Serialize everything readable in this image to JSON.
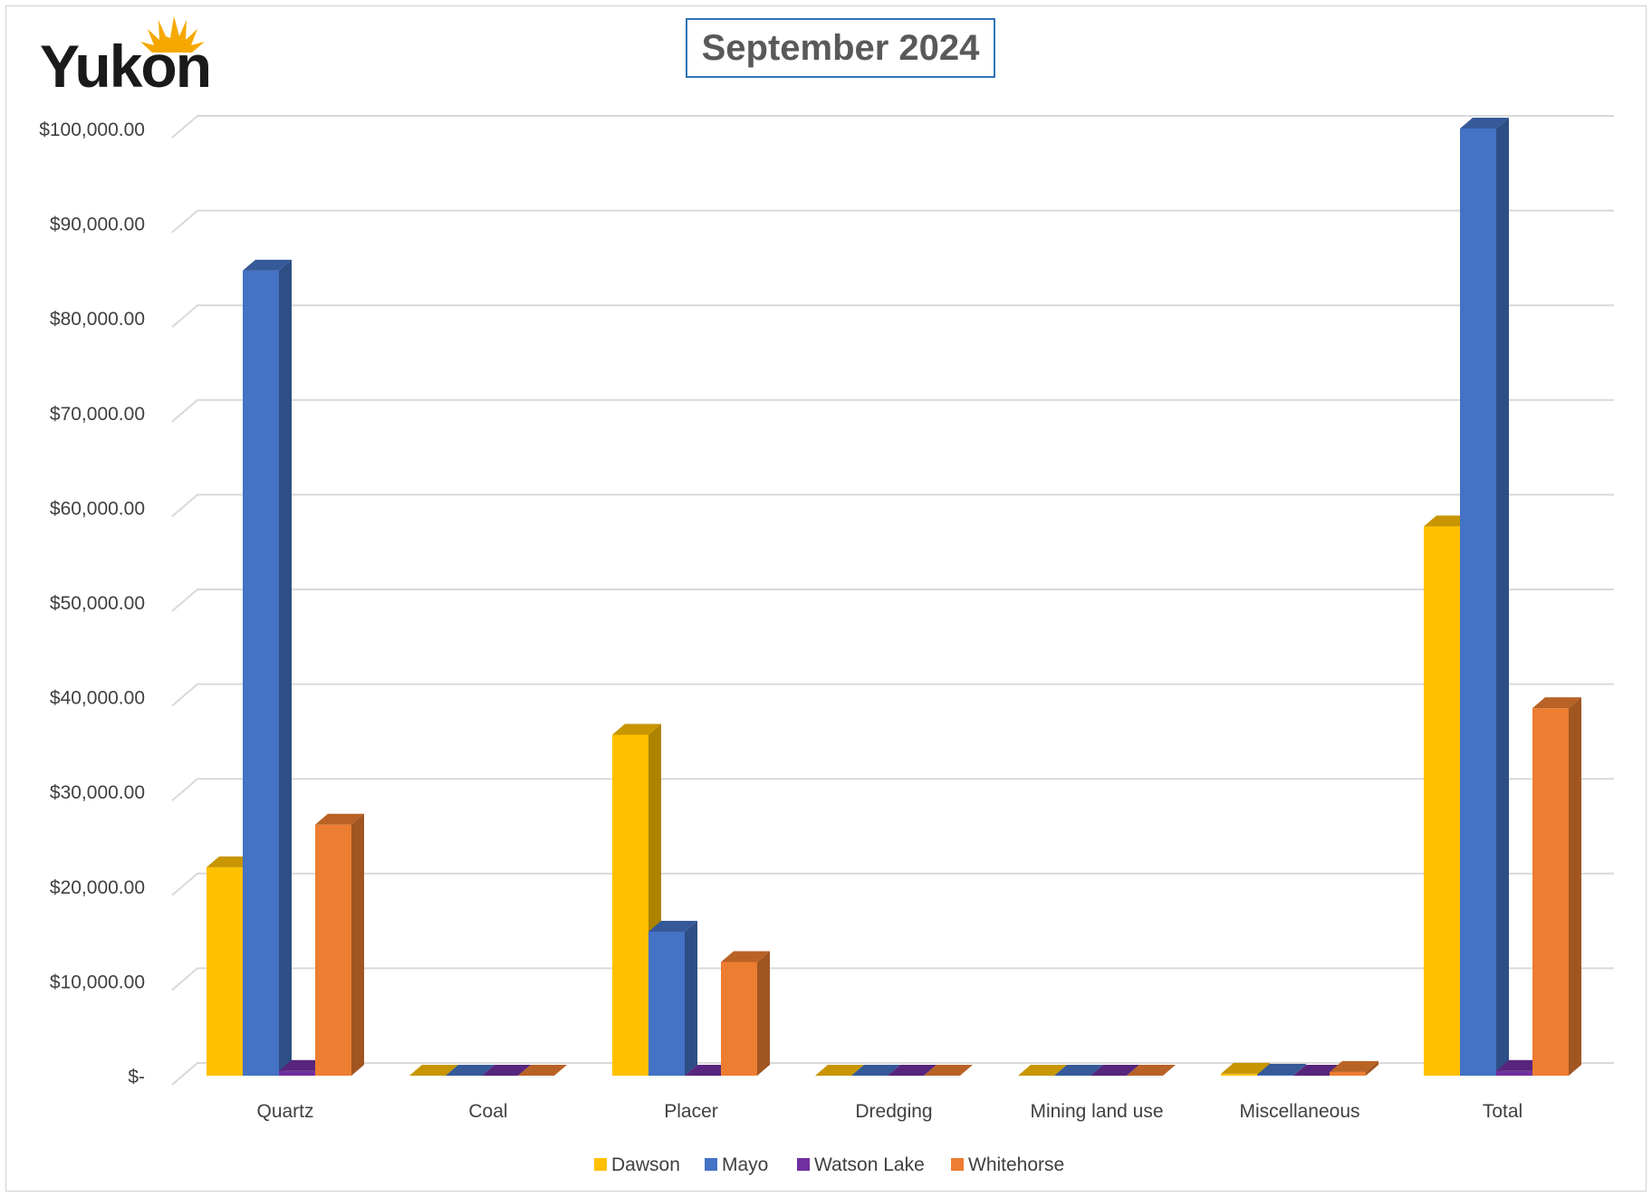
{
  "logo": {
    "text": "Yukon",
    "colors": {
      "text": "#1a1a1a",
      "sun": "#f6a800"
    }
  },
  "chart_data": {
    "type": "bar",
    "title": "September 2024",
    "categories": [
      "Quartz",
      "Coal",
      "Placer",
      "Dredging",
      "Mining land use",
      "Miscellaneous",
      "Total"
    ],
    "series": [
      {
        "name": "Dawson",
        "color": "#ffc000",
        "values": [
          22000,
          0,
          36000,
          0,
          0,
          200,
          58000
        ]
      },
      {
        "name": "Mayo",
        "color": "#4472c4",
        "values": [
          85000,
          0,
          15200,
          0,
          0,
          100,
          100000
        ]
      },
      {
        "name": "Watson Lake",
        "color": "#7030a0",
        "values": [
          500,
          0,
          0,
          0,
          0,
          0,
          500
        ]
      },
      {
        "name": "Whitehorse",
        "color": "#ed7d31",
        "values": [
          26500,
          0,
          12000,
          0,
          0,
          400,
          38800
        ]
      }
    ],
    "ylim": [
      0,
      100000
    ],
    "yticks": [
      {
        "value": 0,
        "label": "$-"
      },
      {
        "value": 10000,
        "label": "$10,000.00"
      },
      {
        "value": 20000,
        "label": "$20,000.00"
      },
      {
        "value": 30000,
        "label": "$30,000.00"
      },
      {
        "value": 40000,
        "label": "$40,000.00"
      },
      {
        "value": 50000,
        "label": "$50,000.00"
      },
      {
        "value": 60000,
        "label": "$60,000.00"
      },
      {
        "value": 70000,
        "label": "$70,000.00"
      },
      {
        "value": 80000,
        "label": "$80,000.00"
      },
      {
        "value": 90000,
        "label": "$90,000.00"
      },
      {
        "value": 100000,
        "label": "$100,000.00"
      }
    ],
    "grid": true,
    "legend_position": "bottom",
    "style": "3d-clustered-column"
  }
}
